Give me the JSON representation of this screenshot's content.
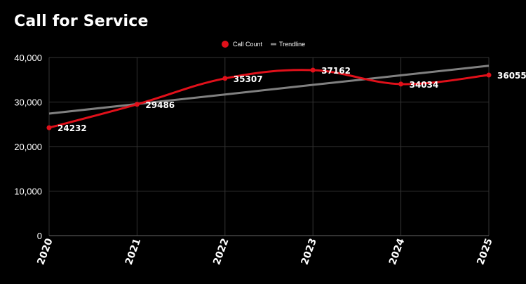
{
  "title": "Call for Service",
  "colors": {
    "background": "#000000",
    "call_count": "#e0101a",
    "trendline": "#808080",
    "grid": "#333333"
  },
  "chart_data": {
    "type": "line",
    "title": "Call for Service",
    "xlabel": "",
    "ylabel": "",
    "categories": [
      "2020",
      "2021",
      "2022",
      "2023",
      "2024",
      "2025"
    ],
    "ylim": [
      0,
      40000
    ],
    "yticks": [
      0,
      10000,
      20000,
      30000,
      40000
    ],
    "ytick_labels": [
      "0",
      "10,000",
      "20,000",
      "30,000",
      "40,000"
    ],
    "grid": true,
    "legend_position": "top-center",
    "series": [
      {
        "name": "Call Count",
        "values": [
          24232,
          29486,
          35307,
          37162,
          34034,
          36055
        ],
        "data_labels": [
          "24232",
          "29486",
          "35307",
          "37162",
          "34034",
          "36055"
        ],
        "smooth": true,
        "markers": true
      },
      {
        "name": "Trendline",
        "values": [
          27400,
          29550,
          31700,
          33850,
          36000,
          38150
        ],
        "smooth": false,
        "markers": false
      }
    ]
  }
}
